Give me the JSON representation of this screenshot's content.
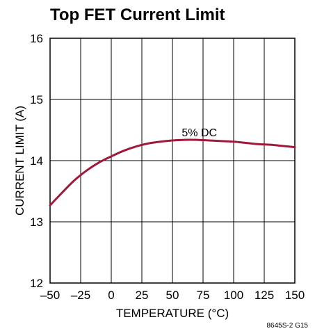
{
  "chart_data": {
    "type": "line",
    "title": "Top FET Current Limit",
    "xlabel": "TEMPERATURE (°C)",
    "ylabel": "CURRENT LIMIT (A)",
    "xlim": [
      -50,
      150
    ],
    "ylim": [
      12,
      16
    ],
    "xticks": [
      -50,
      -25,
      0,
      25,
      50,
      75,
      100,
      125,
      150
    ],
    "yticks": [
      12,
      13,
      14,
      15,
      16
    ],
    "xtick_labels": [
      "–50",
      "–25",
      "0",
      "25",
      "50",
      "75",
      "100",
      "125",
      "150"
    ],
    "ytick_labels": [
      "12",
      "13",
      "14",
      "15",
      "16"
    ],
    "grid": true,
    "series": [
      {
        "name": "5% DC",
        "color": "#a0183a",
        "x": [
          -50,
          -40,
          -30,
          -20,
          -10,
          0,
          10,
          20,
          30,
          40,
          50,
          60,
          70,
          80,
          90,
          100,
          110,
          120,
          130,
          140,
          150
        ],
        "y": [
          13.27,
          13.48,
          13.68,
          13.84,
          13.97,
          14.07,
          14.16,
          14.23,
          14.28,
          14.31,
          14.33,
          14.34,
          14.34,
          14.33,
          14.32,
          14.31,
          14.29,
          14.27,
          14.26,
          14.24,
          14.22
        ]
      }
    ],
    "annotations": [
      {
        "text": "5% DC",
        "x": 72,
        "y": 14.4
      }
    ],
    "figure_id": "8645S-2 G15"
  }
}
